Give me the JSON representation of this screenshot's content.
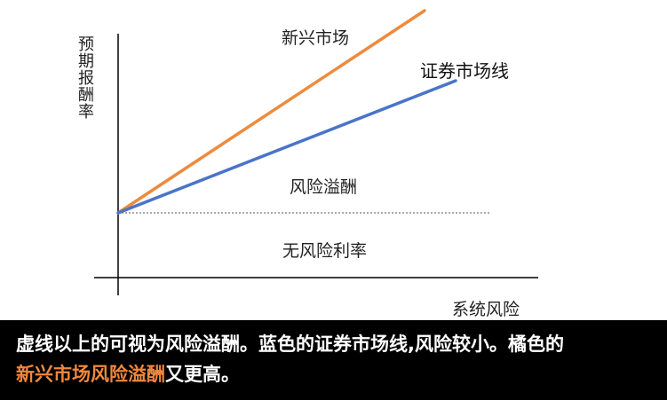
{
  "diagram": {
    "y_axis_label": "预期报酬率",
    "x_axis_label": "系统风险",
    "lines": [
      {
        "name": "新兴市场",
        "color": "#ed8b3f"
      },
      {
        "name": "证券市场线",
        "color": "#4a74c9"
      }
    ],
    "risk_free_line": {
      "style": "dotted",
      "color": "#555555"
    },
    "region_labels": {
      "risk_premium": "风险溢酬",
      "risk_free_rate": "无风险利率"
    }
  },
  "caption": {
    "line1": "虚线以上的可视为风险溢酬。蓝色的证券市场线,风险较小。橘色的",
    "line2_highlight": "新兴市场风险溢酬",
    "line2_rest": "又更高。",
    "highlight_color": "#f0883e"
  }
}
